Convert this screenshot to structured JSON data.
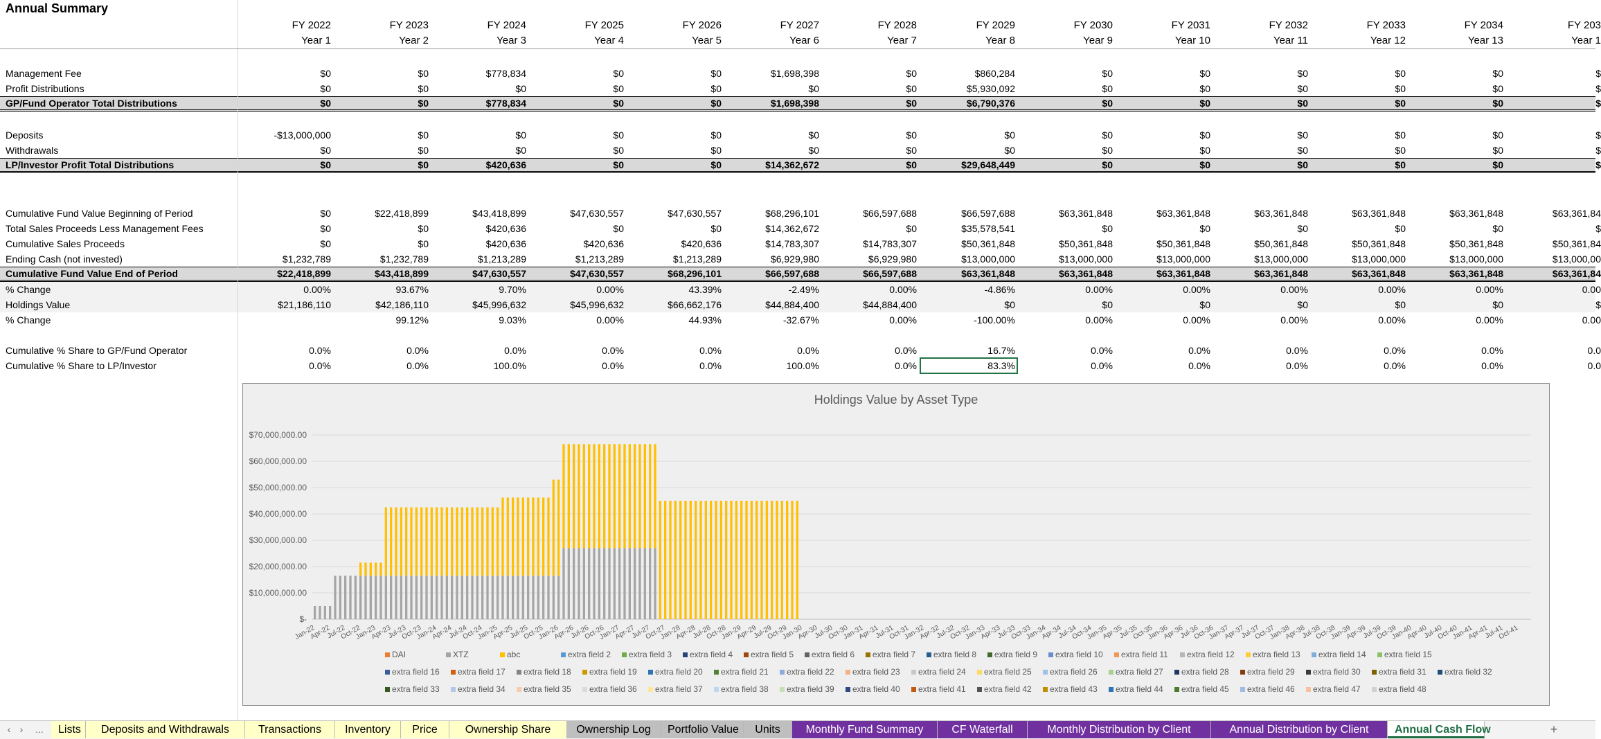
{
  "sheet": {
    "title": "Annual Summary",
    "columns": [
      {
        "fy": "FY 2022",
        "year": "Year 1"
      },
      {
        "fy": "FY 2023",
        "year": "Year 2"
      },
      {
        "fy": "FY 2024",
        "year": "Year 3"
      },
      {
        "fy": "FY 2025",
        "year": "Year 4"
      },
      {
        "fy": "FY 2026",
        "year": "Year 5"
      },
      {
        "fy": "FY 2027",
        "year": "Year 6"
      },
      {
        "fy": "FY 2028",
        "year": "Year 7"
      },
      {
        "fy": "FY 2029",
        "year": "Year 8"
      },
      {
        "fy": "FY 2030",
        "year": "Year 9"
      },
      {
        "fy": "FY 2031",
        "year": "Year 10"
      },
      {
        "fy": "FY 2032",
        "year": "Year 11"
      },
      {
        "fy": "FY 2033",
        "year": "Year 12"
      },
      {
        "fy": "FY 2034",
        "year": "Year 13"
      },
      {
        "fy": "FY 203",
        "year": "Year 1"
      }
    ],
    "rows": [
      {
        "label": "Management Fee",
        "style": "normal",
        "values": [
          "$0",
          "$0",
          "$778,834",
          "$0",
          "$0",
          "$1,698,398",
          "$0",
          "$860,284",
          "$0",
          "$0",
          "$0",
          "$0",
          "$0",
          "$"
        ]
      },
      {
        "label": "Profit Distributions",
        "style": "normal",
        "values": [
          "$0",
          "$0",
          "$0",
          "$0",
          "$0",
          "$0",
          "$0",
          "$5,930,092",
          "$0",
          "$0",
          "$0",
          "$0",
          "$0",
          "$"
        ]
      },
      {
        "label": "GP/Fund Operator Total Distributions",
        "style": "total",
        "values": [
          "$0",
          "$0",
          "$778,834",
          "$0",
          "$0",
          "$1,698,398",
          "$0",
          "$6,790,376",
          "$0",
          "$0",
          "$0",
          "$0",
          "$0",
          "$"
        ]
      },
      {
        "label": "Deposits",
        "style": "normal",
        "values": [
          "-$13,000,000",
          "$0",
          "$0",
          "$0",
          "$0",
          "$0",
          "$0",
          "$0",
          "$0",
          "$0",
          "$0",
          "$0",
          "$0",
          "$"
        ]
      },
      {
        "label": "Withdrawals",
        "style": "normal",
        "values": [
          "$0",
          "$0",
          "$0",
          "$0",
          "$0",
          "$0",
          "$0",
          "$0",
          "$0",
          "$0",
          "$0",
          "$0",
          "$0",
          "$"
        ]
      },
      {
        "label": "LP/Investor Profit Total Distributions",
        "style": "total",
        "values": [
          "$0",
          "$0",
          "$420,636",
          "$0",
          "$0",
          "$14,362,672",
          "$0",
          "$29,648,449",
          "$0",
          "$0",
          "$0",
          "$0",
          "$0",
          "$"
        ]
      },
      {
        "label": "Cumulative Fund Value Beginning of Period",
        "style": "normal",
        "values": [
          "$0",
          "$22,418,899",
          "$43,418,899",
          "$47,630,557",
          "$47,630,557",
          "$68,296,101",
          "$66,597,688",
          "$66,597,688",
          "$63,361,848",
          "$63,361,848",
          "$63,361,848",
          "$63,361,848",
          "$63,361,848",
          "$63,361,84"
        ]
      },
      {
        "label": "Total Sales Proceeds Less Management Fees",
        "style": "normal",
        "values": [
          "$0",
          "$0",
          "$420,636",
          "$0",
          "$0",
          "$14,362,672",
          "$0",
          "$35,578,541",
          "$0",
          "$0",
          "$0",
          "$0",
          "$0",
          "$"
        ]
      },
      {
        "label": "Cumulative Sales Proceeds",
        "style": "normal",
        "values": [
          "$0",
          "$0",
          "$420,636",
          "$420,636",
          "$420,636",
          "$14,783,307",
          "$14,783,307",
          "$50,361,848",
          "$50,361,848",
          "$50,361,848",
          "$50,361,848",
          "$50,361,848",
          "$50,361,848",
          "$50,361,84"
        ]
      },
      {
        "label": "Ending Cash (not invested)",
        "style": "normal",
        "values": [
          "$1,232,789",
          "$1,232,789",
          "$1,213,289",
          "$1,213,289",
          "$1,213,289",
          "$6,929,980",
          "$6,929,980",
          "$13,000,000",
          "$13,000,000",
          "$13,000,000",
          "$13,000,000",
          "$13,000,000",
          "$13,000,000",
          "$13,000,00"
        ]
      },
      {
        "label": "Cumulative Fund Value End of Period",
        "style": "total",
        "values": [
          "$22,418,899",
          "$43,418,899",
          "$47,630,557",
          "$47,630,557",
          "$68,296,101",
          "$66,597,688",
          "$66,597,688",
          "$63,361,848",
          "$63,361,848",
          "$63,361,848",
          "$63,361,848",
          "$63,361,848",
          "$63,361,848",
          "$63,361,84"
        ]
      },
      {
        "label": "% Change",
        "style": "light",
        "values": [
          "0.00%",
          "93.67%",
          "9.70%",
          "0.00%",
          "43.39%",
          "-2.49%",
          "0.00%",
          "-4.86%",
          "0.00%",
          "0.00%",
          "0.00%",
          "0.00%",
          "0.00%",
          "0.00"
        ]
      },
      {
        "label": "Holdings Value",
        "style": "light",
        "values": [
          "$21,186,110",
          "$42,186,110",
          "$45,996,632",
          "$45,996,632",
          "$66,662,176",
          "$44,884,400",
          "$44,884,400",
          "$0",
          "$0",
          "$0",
          "$0",
          "$0",
          "$0",
          "$"
        ]
      },
      {
        "label": "% Change",
        "style": "normal",
        "values": [
          "",
          "99.12%",
          "9.03%",
          "0.00%",
          "44.93%",
          "-32.67%",
          "0.00%",
          "-100.00%",
          "0.00%",
          "0.00%",
          "0.00%",
          "0.00%",
          "0.00%",
          "0.00"
        ]
      },
      {
        "label": "Cumulative % Share to GP/Fund Operator",
        "style": "normal",
        "values": [
          "0.0%",
          "0.0%",
          "0.0%",
          "0.0%",
          "0.0%",
          "0.0%",
          "0.0%",
          "16.7%",
          "0.0%",
          "0.0%",
          "0.0%",
          "0.0%",
          "0.0%",
          "0.0"
        ]
      },
      {
        "label": "Cumulative % Share to LP/Investor",
        "style": "normal",
        "values": [
          "0.0%",
          "0.0%",
          "100.0%",
          "0.0%",
          "0.0%",
          "100.0%",
          "0.0%",
          "83.3%",
          "0.0%",
          "0.0%",
          "0.0%",
          "0.0%",
          "0.0%",
          "0.0"
        ]
      }
    ]
  },
  "chart_data": {
    "type": "bar",
    "stacked": true,
    "title": "Holdings Value by Asset Type",
    "xlabel": "",
    "ylabel": "",
    "ylim": [
      0,
      75000000
    ],
    "yticks": [
      "$-",
      "$10,000,000.00",
      "$20,000,000.00",
      "$30,000,000.00",
      "$40,000,000.00",
      "$50,000,000.00",
      "$60,000,000.00",
      "$70,000,000.00"
    ],
    "x_tick_labels": [
      "Jan-22",
      "Apr-22",
      "Jul-22",
      "Oct-22",
      "Jan-23",
      "Apr-23",
      "Jul-23",
      "Oct-23",
      "Jan-24",
      "Apr-24",
      "Jul-24",
      "Oct-24",
      "Jan-25",
      "Apr-25",
      "Jul-25",
      "Oct-25",
      "Jan-26",
      "Apr-26",
      "Jul-26",
      "Oct-26",
      "Jan-27",
      "Apr-27",
      "Jul-27",
      "Oct-27",
      "Jan-28",
      "Apr-28",
      "Jul-28",
      "Oct-28",
      "Jan-29",
      "Apr-29",
      "Jul-29",
      "Oct-29",
      "Jan-30",
      "Apr-30",
      "Jul-30",
      "Oct-30",
      "Jan-31",
      "Apr-31",
      "Jul-31",
      "Oct-31",
      "Jan-32",
      "Apr-32",
      "Jul-32",
      "Oct-32",
      "Jan-33",
      "Apr-33",
      "Jul-33",
      "Oct-33",
      "Jan-34",
      "Apr-34",
      "Jul-34",
      "Oct-34",
      "Jan-35",
      "Apr-35",
      "Jul-35",
      "Oct-35",
      "Jan-36",
      "Apr-36",
      "Jul-36",
      "Oct-36",
      "Jan-37",
      "Apr-37",
      "Jul-37",
      "Oct-37",
      "Jan-38",
      "Apr-38",
      "Jul-38",
      "Oct-38",
      "Jan-39",
      "Apr-39",
      "Jul-39",
      "Oct-39",
      "Jan-40",
      "Apr-40",
      "Jul-40",
      "Oct-40",
      "Jan-41",
      "Apr-41",
      "Jul-41",
      "Oct-41"
    ],
    "grid": true,
    "legend_placement": "bottom",
    "series": [
      {
        "name": "DAI",
        "color": "#ed7d31",
        "periods": [
          {
            "from": "Jan-22",
            "to": "Dec-29",
            "value": 0
          }
        ]
      },
      {
        "name": "XTZ",
        "color": "#a5a5a5",
        "periods": [
          {
            "from": "Jan-22",
            "to": "Apr-22",
            "value": 5000000
          },
          {
            "from": "May-22",
            "to": "Jan-26",
            "value": 16500000
          },
          {
            "from": "Feb-26",
            "to": "Aug-27",
            "value": 27000000
          },
          {
            "from": "Sep-27",
            "to": "Dec-29",
            "value": 0
          }
        ]
      },
      {
        "name": "abc",
        "color": "#ffc000",
        "periods": [
          {
            "from": "Jan-22",
            "to": "Sep-22",
            "value": 0
          },
          {
            "from": "Oct-22",
            "to": "Feb-23",
            "value": 5000000
          },
          {
            "from": "Mar-23",
            "to": "Jan-25",
            "value": 26000000
          },
          {
            "from": "Feb-25",
            "to": "Nov-25",
            "value": 29700000
          },
          {
            "from": "Dec-25",
            "to": "Jan-26",
            "value": 36500000
          },
          {
            "from": "Feb-26",
            "to": "Aug-27",
            "value": 39500000
          },
          {
            "from": "Sep-27",
            "to": "Dec-29",
            "value": 45000000
          }
        ]
      }
    ],
    "legend": [
      "DAI",
      "XTZ",
      "abc",
      "extra field 2",
      "extra field 3",
      "extra field 4",
      "extra field 5",
      "extra field 6",
      "extra field 7",
      "extra field 8",
      "extra field 9",
      "extra field 10",
      "extra field 11",
      "extra field 12",
      "extra field 13",
      "extra field 14",
      "extra field 15",
      "extra field 16",
      "extra field 17",
      "extra field 18",
      "extra field 19",
      "extra field 20",
      "extra field 21",
      "extra field 22",
      "extra field 23",
      "extra field 24",
      "extra field 25",
      "extra field 26",
      "extra field 27",
      "extra field 28",
      "extra field 29",
      "extra field 30",
      "extra field 31",
      "extra field 32",
      "extra field 33",
      "extra field 34",
      "extra field 35",
      "extra field 36",
      "extra field 37",
      "extra field 38",
      "extra field 39",
      "extra field 40",
      "extra field 41",
      "extra field 42",
      "extra field 43",
      "extra field 44",
      "extra field 45",
      "extra field 46",
      "extra field 47",
      "extra field 48"
    ],
    "legend_colors": [
      "#ed7d31",
      "#a5a5a5",
      "#ffc000",
      "#5b9bd5",
      "#70ad47",
      "#264478",
      "#9e480e",
      "#636363",
      "#997300",
      "#255e91",
      "#43682b",
      "#698ed0",
      "#f1975a",
      "#b7b7b7",
      "#ffcd33",
      "#7cafdd",
      "#8cc168",
      "#3a5e9c",
      "#d26012",
      "#848484",
      "#cc9a00",
      "#2f75b5",
      "#548235",
      "#8faadc",
      "#f4b183",
      "#c9c9c9",
      "#ffd966",
      "#9dc3e6",
      "#a9d18e",
      "#203864",
      "#843c0c",
      "#3b3b3b",
      "#806000",
      "#1f4e79",
      "#385723",
      "#b4c7e7",
      "#f8cbad",
      "#dbdbdb",
      "#ffe699",
      "#bdd7ee",
      "#c5e0b4",
      "#2e4a7d",
      "#c55a11",
      "#525252",
      "#bf8f00",
      "#2e75b6",
      "#4e7a2d",
      "#a2b9e3",
      "#f7c19d",
      "#d0d0d0"
    ]
  },
  "tabs": {
    "nav_prev": "‹",
    "nav_next": "›",
    "nav_more": "...",
    "add": "+",
    "items": [
      {
        "label": "Lists",
        "bg": "#ffffc8",
        "fg": "#000"
      },
      {
        "label": "Deposits and Withdrawals",
        "bg": "#ffffc8",
        "fg": "#000"
      },
      {
        "label": "Transactions",
        "bg": "#ffffc8",
        "fg": "#000"
      },
      {
        "label": "Inventory",
        "bg": "#ffffc8",
        "fg": "#000"
      },
      {
        "label": "Price",
        "bg": "#ffffc8",
        "fg": "#000"
      },
      {
        "label": "Ownership Share",
        "bg": "#ffffc8",
        "fg": "#000"
      },
      {
        "label": "Ownership Log",
        "bg": "#bfbfbf",
        "fg": "#000"
      },
      {
        "label": "Portfolio Value",
        "bg": "#bfbfbf",
        "fg": "#000"
      },
      {
        "label": "Units",
        "bg": "#bfbfbf",
        "fg": "#000"
      },
      {
        "label": "Monthly Fund Summary",
        "bg": "#7030a0",
        "fg": "#fff"
      },
      {
        "label": "CF Waterfall",
        "bg": "#7030a0",
        "fg": "#fff"
      },
      {
        "label": "Monthly Distribution by Client",
        "bg": "#7030a0",
        "fg": "#fff"
      },
      {
        "label": "Annual Distribution by Client",
        "bg": "#7030a0",
        "fg": "#fff"
      },
      {
        "label": "Annual Cash Flow",
        "bg": "#ffffff",
        "fg": "#1f6e43",
        "active": true
      }
    ]
  }
}
